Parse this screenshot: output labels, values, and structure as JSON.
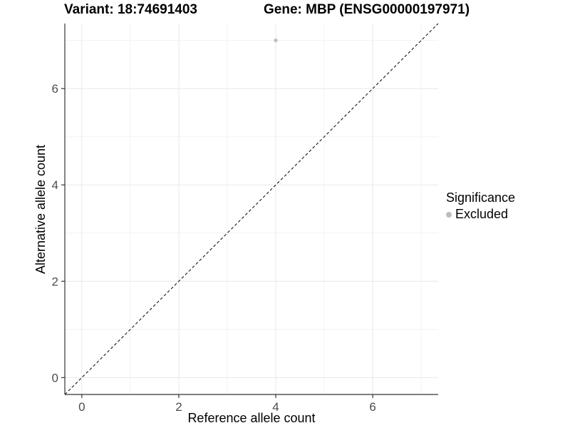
{
  "header": {
    "variant_title": "Variant: 18:74691403",
    "gene_title": "Gene: MBP (ENSG00000197971)"
  },
  "legend": {
    "title": "Significance",
    "items": [
      {
        "label": "Excluded",
        "color": "#bdbdbd"
      }
    ]
  },
  "chart_data": {
    "type": "scatter",
    "title": "Variant: 18:74691403 — Gene: MBP (ENSG00000197971)",
    "xlabel": "Reference allele count",
    "ylabel": "Alternative allele count",
    "xlim": [
      -0.35,
      7.35
    ],
    "ylim": [
      -0.35,
      7.35
    ],
    "x_ticks": [
      0,
      2,
      4,
      6
    ],
    "y_ticks": [
      0,
      2,
      4,
      6
    ],
    "x_minor_ticks": [
      1,
      3,
      5,
      7
    ],
    "y_minor_ticks": [
      1,
      3,
      5,
      7
    ],
    "grid": true,
    "legend_position": "right",
    "series": [
      {
        "name": "Excluded",
        "color": "#bdbdbd",
        "points": [
          {
            "x": 4,
            "y": 7
          }
        ]
      }
    ],
    "reference_line": {
      "slope": 1,
      "intercept": 0,
      "style": "dashed",
      "color": "#000000"
    }
  },
  "colors": {
    "background": "#ffffff",
    "grid_major": "#e8e8e8",
    "grid_minor": "#f2f2f2",
    "axis_line": "#333333",
    "tick_mark": "#333333",
    "tick_label": "#4d4d4d",
    "point": "#bdbdbd"
  }
}
